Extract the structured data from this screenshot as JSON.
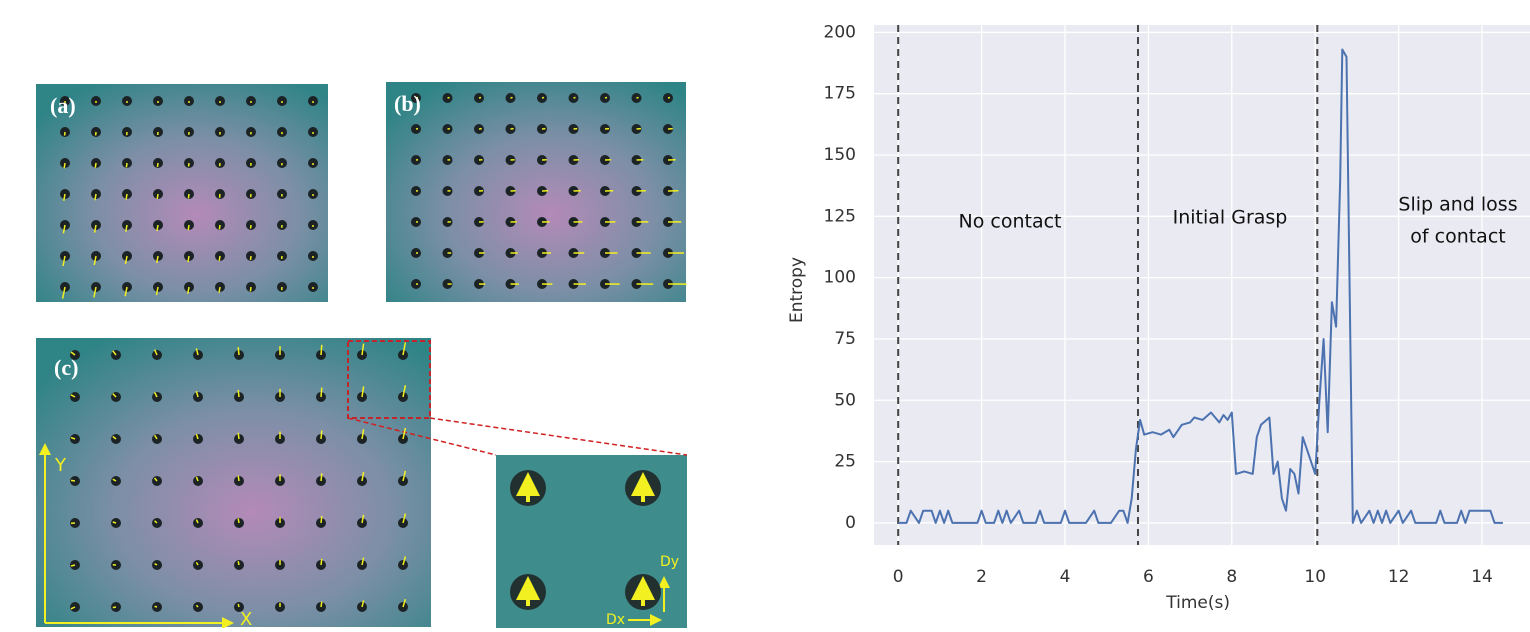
{
  "panels": {
    "labels": [
      "(a)",
      "(b)",
      "(c)"
    ],
    "axis_y": "Y",
    "axis_x": "X",
    "dy": "Dy",
    "dx": "Dx"
  },
  "chart_data": {
    "type": "line",
    "xlabel": "Time(s)",
    "ylabel": "Entropy",
    "annotations": [
      "No contact",
      "Initial Grasp",
      "Slip and loss",
      "of contact"
    ],
    "vlines": [
      0,
      5.75,
      10.05
    ],
    "color": "#4c72b0",
    "grid": true,
    "xlim": [
      -0.58,
      15.15
    ],
    "ylim": [
      -9,
      203
    ],
    "xticks": [
      0,
      2,
      4,
      6,
      8,
      10,
      12,
      14
    ],
    "yticks": [
      0,
      25,
      50,
      75,
      100,
      125,
      150,
      175,
      200
    ],
    "x": [
      0,
      0.2,
      0.3,
      0.5,
      0.6,
      0.8,
      0.9,
      1.0,
      1.1,
      1.2,
      1.3,
      1.9,
      2.0,
      2.1,
      2.3,
      2.4,
      2.5,
      2.6,
      2.7,
      2.9,
      3.0,
      3.3,
      3.4,
      3.5,
      3.9,
      4.0,
      4.1,
      4.5,
      4.7,
      4.8,
      5.1,
      5.3,
      5.4,
      5.5,
      5.6,
      5.7,
      5.8,
      5.9,
      6.1,
      6.3,
      6.5,
      6.6,
      6.8,
      7.0,
      7.1,
      7.3,
      7.5,
      7.7,
      7.8,
      7.9,
      8.0,
      8.1,
      8.3,
      8.5,
      8.6,
      8.7,
      8.9,
      9.0,
      9.1,
      9.2,
      9.3,
      9.4,
      9.5,
      9.6,
      9.7,
      9.8,
      10.0,
      10.1,
      10.2,
      10.3,
      10.4,
      10.5,
      10.6,
      10.65,
      10.75,
      10.9,
      11.0,
      11.1,
      11.3,
      11.4,
      11.5,
      11.6,
      11.7,
      11.8,
      12.0,
      12.1,
      12.3,
      12.4,
      12.9,
      13.0,
      13.1,
      13.4,
      13.5,
      13.6,
      13.7,
      13.8,
      14.0,
      14.2,
      14.3,
      14.5
    ],
    "values": [
      0,
      0,
      5,
      0,
      5,
      5,
      0,
      5,
      0,
      5,
      0,
      0,
      5,
      0,
      0,
      5,
      0,
      5,
      0,
      5,
      0,
      0,
      5,
      0,
      0,
      5,
      0,
      0,
      5,
      0,
      0,
      5,
      5,
      0,
      10,
      30,
      42,
      36,
      37,
      36,
      38,
      35,
      40,
      41,
      43,
      42,
      45,
      41,
      44,
      42,
      45,
      20,
      21,
      20,
      35,
      40,
      43,
      20,
      25,
      10,
      5,
      22,
      20,
      12,
      35,
      30,
      20,
      50,
      75,
      37,
      90,
      80,
      140,
      193,
      190,
      0,
      5,
      0,
      5,
      0,
      5,
      0,
      5,
      0,
      5,
      0,
      5,
      0,
      0,
      5,
      0,
      0,
      5,
      0,
      5,
      5,
      5,
      5,
      0,
      0
    ]
  }
}
